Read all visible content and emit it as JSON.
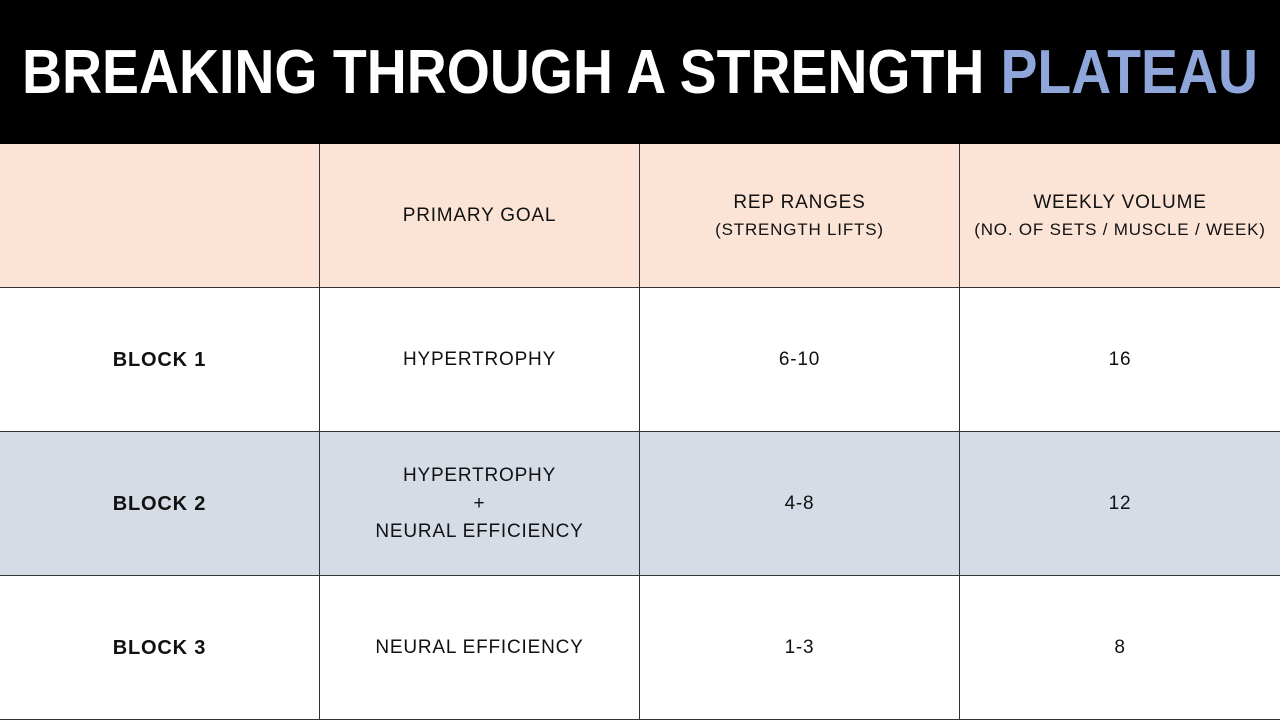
{
  "title": {
    "main": "BREAKING THROUGH A STRENGTH",
    "highlight": "PLATEAU"
  },
  "table": {
    "columns": [
      {
        "label": "PRIMARY GOAL"
      },
      {
        "label": "REP RANGES",
        "note": "(STRENGTH LIFTS)"
      },
      {
        "label": "WEEKLY VOLUME",
        "note": "(NO. OF SETS / MUSCLE / WEEK)"
      }
    ],
    "rows": [
      {
        "block": "BLOCK 1",
        "goal": [
          "HYPERTROPHY"
        ],
        "reps": "6-10",
        "volume": 16
      },
      {
        "block": "BLOCK 2",
        "goal": [
          "HYPERTROPHY",
          "+",
          "NEURAL EFFICIENCY"
        ],
        "reps": "4-8",
        "volume": 12
      },
      {
        "block": "BLOCK 3",
        "goal": [
          "NEURAL EFFICIENCY"
        ],
        "reps": "1-3",
        "volume": 8
      }
    ]
  }
}
